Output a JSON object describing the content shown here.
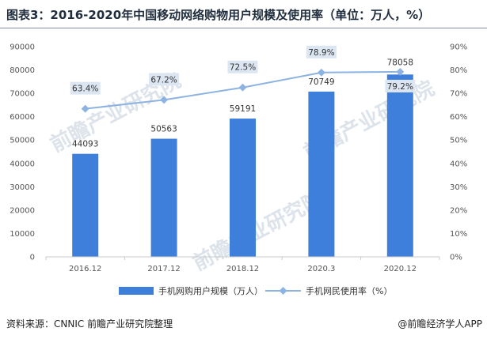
{
  "header": {
    "title": "图表3：2016-2020年中国移动网络购物用户规模及使用率（单位：万人，%）"
  },
  "footer": {
    "source": "资料来源：CNNIC 前瞻产业研究院整理",
    "brand": "@前瞻经济学人APP"
  },
  "watermark": {
    "text": "前瞻产业研究院"
  },
  "colors": {
    "bar": "#3d7fdb",
    "line": "#8db3e2",
    "label_box": "#dce6f2"
  },
  "chart_data": {
    "type": "bar",
    "categories": [
      "2016.12",
      "2017.12",
      "2018.12",
      "2020.3",
      "2020.12"
    ],
    "series": [
      {
        "name": "手机网购用户规模（万人）",
        "type": "bar",
        "axis": "left",
        "values": [
          44093,
          50563,
          59191,
          70749,
          78058
        ],
        "labels": [
          "44093",
          "50563",
          "59191",
          "70749",
          "78058"
        ]
      },
      {
        "name": "手机网民使用率（%）",
        "type": "line",
        "axis": "right",
        "values": [
          63.4,
          67.2,
          72.5,
          78.9,
          79.2
        ],
        "labels": [
          "63.4%",
          "67.2%",
          "72.5%",
          "78.9%",
          "79.2%"
        ]
      }
    ],
    "y_left": {
      "min": 0,
      "max": 90000,
      "ticks": [
        "0",
        "10000",
        "20000",
        "30000",
        "40000",
        "50000",
        "60000",
        "70000",
        "80000",
        "90000"
      ]
    },
    "y_right": {
      "min": 0,
      "max": 90,
      "ticks": [
        "0%",
        "10%",
        "20%",
        "30%",
        "40%",
        "50%",
        "60%",
        "70%",
        "80%",
        "90%"
      ]
    },
    "legend": "bottom",
    "grid": false
  }
}
